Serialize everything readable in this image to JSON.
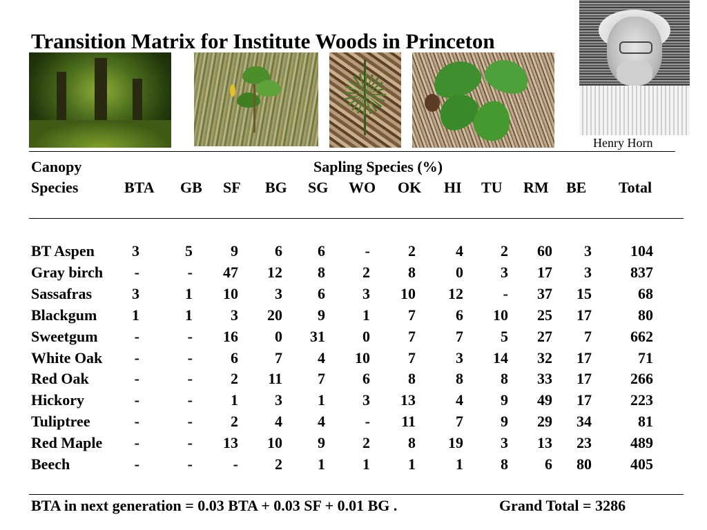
{
  "title": "Transition Matrix  for Institute Woods in Princeton",
  "photo_caption": "Henry Horn",
  "header": {
    "canopy": "Canopy",
    "sapling": "Sapling Species (%)",
    "species": "Species",
    "columns": [
      "BTA",
      "GB",
      "SF",
      "BG",
      "SG",
      "WO",
      "OK",
      "HI",
      "TU",
      "RM",
      "BE",
      "Total"
    ]
  },
  "rows": [
    {
      "name": "BT Aspen",
      "values": [
        "3",
        "5",
        "9",
        "6",
        "6",
        "-",
        "2",
        "4",
        "2",
        "60",
        "3",
        "104"
      ]
    },
    {
      "name": "Gray birch",
      "values": [
        "-",
        "-",
        "47",
        "12",
        "8",
        "2",
        "8",
        "0",
        "3",
        "17",
        "3",
        "837"
      ]
    },
    {
      "name": "Sassafras",
      "values": [
        "3",
        "1",
        "10",
        "3",
        "6",
        "3",
        "10",
        "12",
        "-",
        "37",
        "15",
        "68"
      ]
    },
    {
      "name": "Blackgum",
      "values": [
        "1",
        "1",
        "3",
        "20",
        "9",
        "1",
        "7",
        "6",
        "10",
        "25",
        "17",
        "80"
      ]
    },
    {
      "name": "Sweetgum",
      "values": [
        "-",
        "-",
        "16",
        "0",
        "31",
        "0",
        "7",
        "7",
        "5",
        "27",
        "7",
        "662"
      ]
    },
    {
      "name": "White Oak",
      "values": [
        "-",
        "-",
        "6",
        "7",
        "4",
        "10",
        "7",
        "3",
        "14",
        "32",
        "17",
        "71"
      ]
    },
    {
      "name": "Red Oak",
      "values": [
        "-",
        "-",
        "2",
        "11",
        "7",
        "6",
        "8",
        "8",
        "8",
        "33",
        "17",
        "266"
      ]
    },
    {
      "name": "Hickory",
      "values": [
        "-",
        "-",
        "1",
        "3",
        "1",
        "3",
        "13",
        "4",
        "9",
        "49",
        "17",
        "223"
      ]
    },
    {
      "name": "Tuliptree",
      "values": [
        "-",
        "-",
        "2",
        "4",
        "4",
        "-",
        "11",
        "7",
        "9",
        "29",
        "34",
        "81"
      ]
    },
    {
      "name": "Red Maple",
      "values": [
        "-",
        "-",
        "13",
        "10",
        "9",
        "2",
        "8",
        "19",
        "3",
        "13",
        "23",
        "489"
      ]
    },
    {
      "name": "Beech",
      "values": [
        "-",
        "-",
        "-",
        "2",
        "1",
        "1",
        "1",
        "1",
        "8",
        "6",
        "80",
        "405"
      ]
    }
  ],
  "footer": {
    "equation": "BTA in next generation = 0.03 BTA + 0.03 SF + 0.01 BG  .",
    "grand_total": "Grand Total  =  3286"
  }
}
